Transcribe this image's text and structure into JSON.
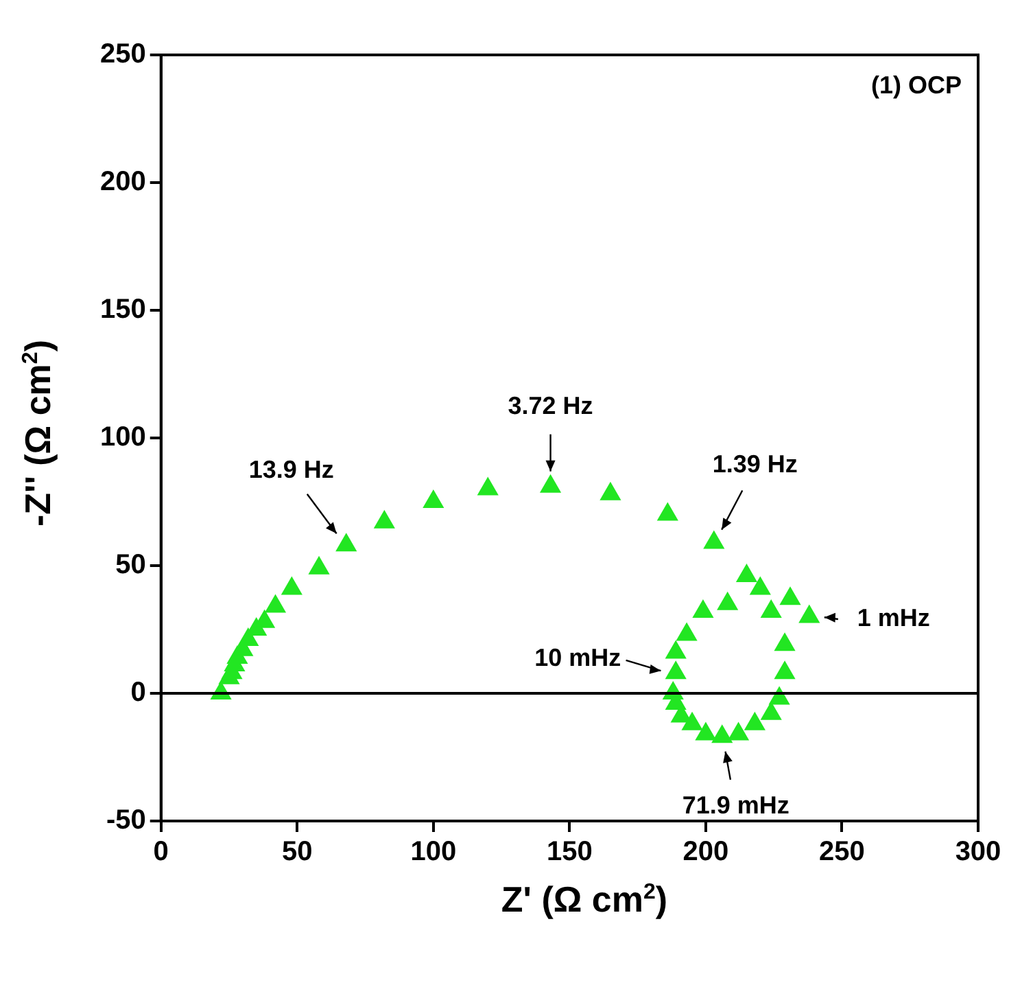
{
  "chart_data": {
    "type": "scatter",
    "xlabel": "Z' (Ω cm$^{2}$)",
    "ylabel": "-Z'' (Ω cm$^{2}$)",
    "xlim": [
      0,
      300
    ],
    "ylim": [
      -50,
      250
    ],
    "xticks": [
      0,
      50,
      100,
      150,
      200,
      250,
      300
    ],
    "yticks": [
      -50,
      0,
      50,
      100,
      150,
      200,
      250
    ],
    "grid": false,
    "legend": false,
    "marker": "triangle",
    "series": [
      {
        "color": "#22e622",
        "x": [
          22,
          23,
          24,
          25,
          26,
          27,
          28,
          30,
          32,
          35,
          38,
          42,
          48,
          58,
          68,
          82,
          100,
          120,
          143,
          165,
          186,
          203,
          215,
          220,
          229,
          229,
          227,
          224,
          218,
          212,
          206,
          200,
          195,
          191,
          189,
          188,
          189,
          189,
          193,
          199,
          208,
          224,
          231,
          238
        ],
        "values": [
          0,
          null,
          null,
          6,
          8,
          11,
          14,
          17,
          21,
          25,
          28,
          34,
          41,
          49,
          58,
          67,
          75,
          80,
          81,
          78,
          70,
          59,
          46,
          41,
          19,
          8,
          -2,
          -8,
          -12,
          -16,
          -17,
          -16,
          -12,
          -9,
          -4,
          0,
          8,
          16,
          23,
          32,
          35,
          32,
          37,
          30
        ]
      }
    ],
    "ref_lines": [
      {
        "axis": "y",
        "value": 0,
        "color": "#000000"
      }
    ],
    "annotations": [
      "(1) OCP",
      {
        "text": "13.9 Hz",
        "x": 68,
        "y": 58
      },
      {
        "text": "3.72 Hz",
        "x": 143,
        "y": 81
      },
      {
        "text": "1.39 Hz",
        "x": 203,
        "y": 59
      },
      {
        "text": "1 mHz",
        "x": 238,
        "y": 30
      },
      {
        "text": "10 mHz",
        "x": 189,
        "y": 8
      },
      {
        "text": "71.9 mHz",
        "x": 206,
        "y": -17
      }
    ]
  }
}
